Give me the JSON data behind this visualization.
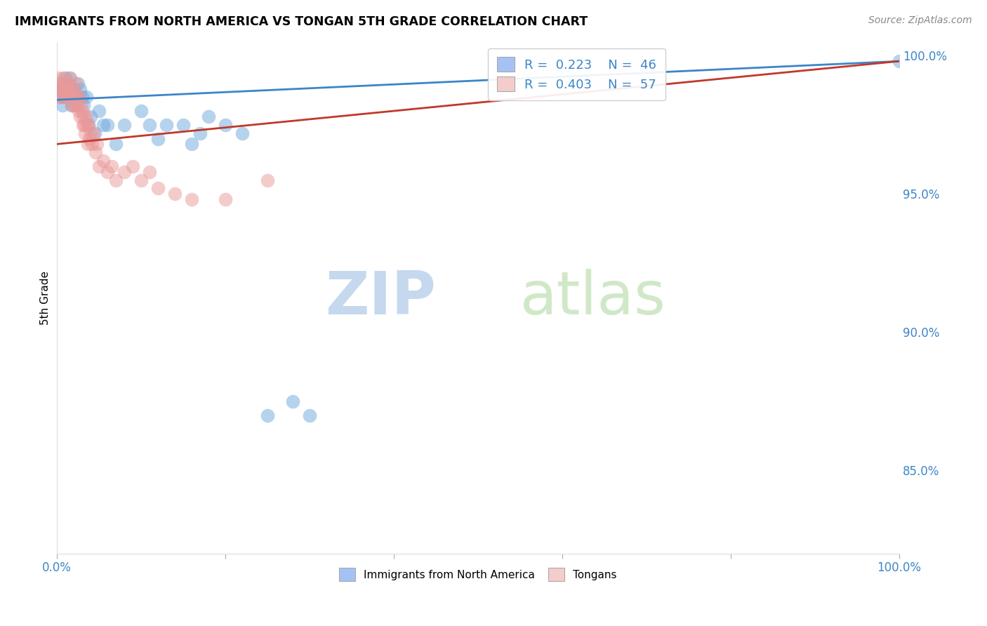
{
  "title": "IMMIGRANTS FROM NORTH AMERICA VS TONGAN 5TH GRADE CORRELATION CHART",
  "source": "Source: ZipAtlas.com",
  "ylabel": "5th Grade",
  "xlim": [
    0.0,
    1.0
  ],
  "ylim": [
    0.82,
    1.005
  ],
  "ytick_positions": [
    0.85,
    0.9,
    0.95,
    1.0
  ],
  "ytick_labels": [
    "85.0%",
    "90.0%",
    "95.0%",
    "100.0%"
  ],
  "blue_R": 0.223,
  "blue_N": 46,
  "pink_R": 0.403,
  "pink_N": 57,
  "blue_color": "#6fa8dc",
  "pink_color": "#ea9999",
  "blue_line_color": "#3d85c8",
  "pink_line_color": "#c0392b",
  "legend_blue_face": "#a4c2f4",
  "legend_pink_face": "#f4cccc",
  "watermark_zip": "ZIP",
  "watermark_atlas": "atlas",
  "watermark_color": "#d6e8f7",
  "blue_scatter_x": [
    0.003,
    0.005,
    0.006,
    0.007,
    0.008,
    0.009,
    0.01,
    0.011,
    0.012,
    0.013,
    0.014,
    0.015,
    0.016,
    0.017,
    0.018,
    0.02,
    0.021,
    0.022,
    0.025,
    0.026,
    0.028,
    0.03,
    0.032,
    0.035,
    0.038,
    0.04,
    0.045,
    0.05,
    0.055,
    0.06,
    0.07,
    0.08,
    0.1,
    0.11,
    0.12,
    0.13,
    0.15,
    0.16,
    0.17,
    0.18,
    0.2,
    0.22,
    0.25,
    0.28,
    0.3,
    1.0
  ],
  "blue_scatter_y": [
    0.988,
    0.985,
    0.99,
    0.982,
    0.988,
    0.985,
    0.992,
    0.985,
    0.988,
    0.99,
    0.985,
    0.992,
    0.988,
    0.985,
    0.982,
    0.988,
    0.985,
    0.982,
    0.99,
    0.985,
    0.988,
    0.985,
    0.982,
    0.985,
    0.975,
    0.978,
    0.972,
    0.98,
    0.975,
    0.975,
    0.968,
    0.975,
    0.98,
    0.975,
    0.97,
    0.975,
    0.975,
    0.968,
    0.972,
    0.978,
    0.975,
    0.972,
    0.87,
    0.875,
    0.87,
    0.998
  ],
  "pink_scatter_x": [
    0.002,
    0.003,
    0.004,
    0.005,
    0.006,
    0.007,
    0.008,
    0.009,
    0.01,
    0.011,
    0.012,
    0.013,
    0.014,
    0.015,
    0.016,
    0.017,
    0.018,
    0.019,
    0.02,
    0.021,
    0.022,
    0.023,
    0.024,
    0.025,
    0.026,
    0.027,
    0.028,
    0.029,
    0.03,
    0.031,
    0.032,
    0.033,
    0.034,
    0.035,
    0.036,
    0.037,
    0.038,
    0.039,
    0.04,
    0.042,
    0.044,
    0.046,
    0.048,
    0.05,
    0.055,
    0.06,
    0.065,
    0.07,
    0.08,
    0.09,
    0.1,
    0.11,
    0.12,
    0.14,
    0.16,
    0.2,
    0.25
  ],
  "pink_scatter_y": [
    0.992,
    0.988,
    0.985,
    0.99,
    0.988,
    0.985,
    0.992,
    0.988,
    0.985,
    0.99,
    0.985,
    0.988,
    0.99,
    0.985,
    0.992,
    0.988,
    0.982,
    0.985,
    0.988,
    0.982,
    0.985,
    0.99,
    0.982,
    0.985,
    0.98,
    0.985,
    0.978,
    0.982,
    0.98,
    0.975,
    0.978,
    0.975,
    0.972,
    0.978,
    0.975,
    0.968,
    0.975,
    0.97,
    0.972,
    0.968,
    0.972,
    0.965,
    0.968,
    0.96,
    0.962,
    0.958,
    0.96,
    0.955,
    0.958,
    0.96,
    0.955,
    0.958,
    0.952,
    0.95,
    0.948,
    0.948,
    0.955
  ]
}
